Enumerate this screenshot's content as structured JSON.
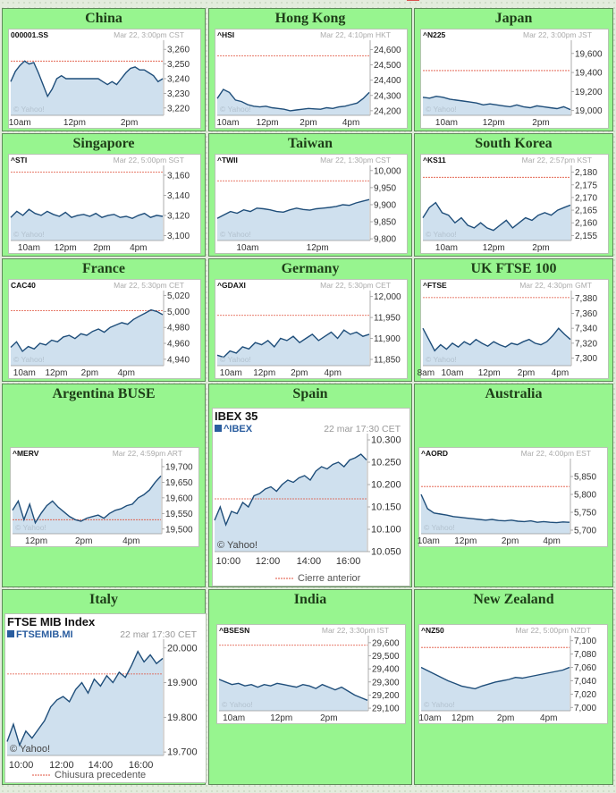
{
  "page": {
    "background": "#e3ecdd",
    "cell_color": "#97f58f"
  },
  "cells": [
    {
      "id": "china",
      "title": "China",
      "sym": "000001.SS",
      "date": "Mar 22, 3:00pm CST"
    },
    {
      "id": "hongkong",
      "title": "Hong Kong",
      "sym": "^HSI",
      "date": "Mar 22, 4:10pm HKT"
    },
    {
      "id": "japan",
      "title": "Japan",
      "sym": "^N225",
      "date": "Mar 22, 3:00pm JST"
    },
    {
      "id": "singapore",
      "title": "Singapore",
      "sym": "^STI",
      "date": "Mar 22, 5:00pm SGT"
    },
    {
      "id": "taiwan",
      "title": "Taiwan",
      "sym": "^TWII",
      "date": "Mar 22, 1:30pm CST"
    },
    {
      "id": "southkorea",
      "title": "South Korea",
      "sym": "^KS11",
      "date": "Mar 22, 2:57pm KST"
    },
    {
      "id": "france",
      "title": "France",
      "sym": "CAC40",
      "date": "Mar 22, 5:30pm CET"
    },
    {
      "id": "germany",
      "title": "Germany",
      "sym": "^GDAXI",
      "date": "Mar 22, 5:30pm CET"
    },
    {
      "id": "uk",
      "title": "UK FTSE 100",
      "sym": "^FTSE",
      "date": "Mar 22, 4:30pm GMT"
    },
    {
      "id": "argentina",
      "title": "Argentina BUSE",
      "sym": "^MERV",
      "date": "Mar 22, 4:59pm ART"
    },
    {
      "id": "spain",
      "title": "Spain",
      "sym": "^IBEX",
      "index_name": "IBEX 35",
      "date": "22 mar 17:30 CET",
      "legend": "Cierre anterior"
    },
    {
      "id": "australia",
      "title": "Australia",
      "sym": "^AORD",
      "date": "Mar 22, 4:00pm EST"
    },
    {
      "id": "italy",
      "title": "Italy",
      "sym": "FTSEMIB.MI",
      "index_name": "FTSE MIB Index",
      "date": "22 mar 17:30 CET",
      "legend": "Chiusura precedente"
    },
    {
      "id": "india",
      "title": "India",
      "sym": "^BSESN",
      "date": "Mar 22, 3:30pm IST"
    },
    {
      "id": "newzealand",
      "title": "New Zealand",
      "sym": "^NZ50",
      "date": "Mar 22, 5:00pm NZDT"
    }
  ],
  "watermark": "© Yahoo!",
  "chart_data": [
    {
      "id": "china",
      "type": "area",
      "title": "000001.SS",
      "ylim": [
        3215,
        3265
      ],
      "prev_close": 3252,
      "y_ticks": [
        "3,260",
        "3,250",
        "3,240",
        "3,230",
        "3,220"
      ],
      "y_tick_values": [
        3260,
        3250,
        3240,
        3230,
        3220
      ],
      "x_ticks": [
        "10am",
        "12pm",
        "2pm"
      ],
      "x_tick_pos": [
        0.06,
        0.42,
        0.78
      ],
      "series": [
        {
          "values": [
            3238,
            3245,
            3249,
            3252,
            3250,
            3251,
            3244,
            3236,
            3228,
            3233,
            3240,
            3242,
            3240,
            3240,
            3240,
            3240,
            3240,
            3240,
            3240,
            3240,
            3238,
            3236,
            3238,
            3236,
            3240,
            3244,
            3247,
            3248,
            3246,
            3246,
            3244,
            3242,
            3238,
            3240
          ]
        }
      ]
    },
    {
      "id": "hongkong",
      "type": "area",
      "title": "^HSI",
      "ylim": [
        24170,
        24650
      ],
      "prev_close": 24560,
      "y_ticks": [
        "24,600",
        "24,500",
        "24,400",
        "24,300",
        "24,200"
      ],
      "y_tick_values": [
        24600,
        24500,
        24400,
        24300,
        24200
      ],
      "x_ticks": [
        "10am",
        "12pm",
        "2pm",
        "4pm"
      ],
      "x_tick_pos": [
        0.07,
        0.33,
        0.6,
        0.88
      ],
      "series": [
        {
          "values": [
            24280,
            24340,
            24320,
            24270,
            24260,
            24240,
            24230,
            24225,
            24230,
            24220,
            24215,
            24210,
            24200,
            24205,
            24210,
            24215,
            24212,
            24210,
            24220,
            24215,
            24225,
            24230,
            24240,
            24250,
            24280,
            24320
          ]
        }
      ]
    },
    {
      "id": "japan",
      "type": "area",
      "title": "^N225",
      "ylim": [
        18950,
        19720
      ],
      "prev_close": 19420,
      "y_ticks": [
        "19,600",
        "19,400",
        "19,200",
        "19,000"
      ],
      "y_tick_values": [
        19600,
        19400,
        19200,
        19000
      ],
      "x_ticks": [
        "10am",
        "12pm",
        "2pm"
      ],
      "x_tick_pos": [
        0.16,
        0.48,
        0.8
      ],
      "series": [
        {
          "values": [
            19140,
            19130,
            19150,
            19140,
            19120,
            19110,
            19100,
            19090,
            19080,
            19060,
            19070,
            19060,
            19050,
            19040,
            19060,
            19040,
            19030,
            19050,
            19040,
            19030,
            19020,
            19040,
            19010
          ]
        }
      ]
    },
    {
      "id": "singapore",
      "type": "area",
      "title": "^STI",
      "ylim": [
        3095,
        3168
      ],
      "prev_close": 3163,
      "y_ticks": [
        "3,160",
        "3,140",
        "3,120",
        "3,100"
      ],
      "y_tick_values": [
        3160,
        3140,
        3120,
        3100
      ],
      "x_ticks": [
        "10am",
        "12pm",
        "2pm",
        "4pm"
      ],
      "x_tick_pos": [
        0.12,
        0.36,
        0.6,
        0.84
      ],
      "series": [
        {
          "values": [
            3118,
            3124,
            3120,
            3126,
            3122,
            3120,
            3124,
            3121,
            3119,
            3123,
            3118,
            3120,
            3121,
            3119,
            3122,
            3118,
            3120,
            3121,
            3118,
            3119,
            3117,
            3120,
            3122,
            3118,
            3120,
            3119
          ]
        }
      ]
    },
    {
      "id": "taiwan",
      "type": "area",
      "title": "^TWII",
      "ylim": [
        9795,
        10010
      ],
      "prev_close": 9970,
      "y_ticks": [
        "10,000",
        "9,950",
        "9,900",
        "9,850",
        "9,800"
      ],
      "y_tick_values": [
        10000,
        9950,
        9900,
        9850,
        9800
      ],
      "x_ticks": [
        "10am",
        "12pm"
      ],
      "x_tick_pos": [
        0.2,
        0.66
      ],
      "series": [
        {
          "values": [
            9860,
            9870,
            9880,
            9875,
            9885,
            9880,
            9890,
            9888,
            9885,
            9880,
            9878,
            9885,
            9890,
            9886,
            9884,
            9888,
            9890,
            9892,
            9895,
            9900,
            9898,
            9905,
            9910,
            9915
          ]
        }
      ]
    },
    {
      "id": "southkorea",
      "type": "area",
      "title": "^KS11",
      "ylim": [
        2153,
        2182
      ],
      "prev_close": 2178,
      "y_ticks": [
        "2,180",
        "2,175",
        "2,170",
        "2,165",
        "2,160",
        "2,155"
      ],
      "y_tick_values": [
        2180,
        2175,
        2170,
        2165,
        2160,
        2155
      ],
      "x_ticks": [
        "10am",
        "12pm",
        "2pm"
      ],
      "x_tick_pos": [
        0.16,
        0.48,
        0.8
      ],
      "series": [
        {
          "values": [
            2162,
            2166,
            2168,
            2164,
            2163,
            2160,
            2162,
            2159,
            2158,
            2160,
            2158,
            2157,
            2159,
            2161,
            2158,
            2160,
            2162,
            2161,
            2163,
            2164,
            2163,
            2165,
            2166,
            2167
          ]
        }
      ]
    },
    {
      "id": "france",
      "type": "area",
      "title": "CAC40",
      "ylim": [
        4932,
        5024
      ],
      "prev_close": 5001,
      "y_ticks": [
        "5,020",
        "5,000",
        "4,980",
        "4,960",
        "4,940"
      ],
      "y_tick_values": [
        5020,
        5000,
        4980,
        4960,
        4940
      ],
      "x_ticks": [
        "10am",
        "12pm",
        "2pm",
        "4pm"
      ],
      "x_tick_pos": [
        0.09,
        0.3,
        0.52,
        0.76
      ],
      "series": [
        {
          "values": [
            4955,
            4962,
            4950,
            4956,
            4953,
            4960,
            4958,
            4964,
            4962,
            4968,
            4970,
            4966,
            4972,
            4970,
            4975,
            4978,
            4974,
            4980,
            4983,
            4986,
            4984,
            4990,
            4994,
            4998,
            5002,
            5000,
            4996
          ]
        }
      ]
    },
    {
      "id": "germany",
      "type": "area",
      "title": "^GDAXI",
      "ylim": [
        11835,
        12010
      ],
      "prev_close": 11955,
      "y_ticks": [
        "12,000",
        "11,950",
        "11,900",
        "11,850"
      ],
      "y_tick_values": [
        12000,
        11950,
        11900,
        11850
      ],
      "x_ticks": [
        "10am",
        "12pm",
        "2pm",
        "4pm"
      ],
      "x_tick_pos": [
        0.09,
        0.31,
        0.54,
        0.76
      ],
      "series": [
        {
          "values": [
            11860,
            11855,
            11870,
            11865,
            11880,
            11875,
            11890,
            11885,
            11895,
            11880,
            11900,
            11895,
            11905,
            11890,
            11900,
            11910,
            11895,
            11905,
            11915,
            11900,
            11920,
            11910,
            11915,
            11905,
            11910
          ]
        }
      ]
    },
    {
      "id": "uk",
      "type": "area",
      "title": "^FTSE",
      "ylim": [
        7290,
        7388
      ],
      "prev_close": 7381,
      "y_ticks": [
        "7,380",
        "7,360",
        "7,340",
        "7,320",
        "7,300"
      ],
      "y_tick_values": [
        7380,
        7360,
        7340,
        7320,
        7300
      ],
      "x_ticks": [
        "8am",
        "10am",
        "12pm",
        "2pm",
        "4pm"
      ],
      "x_tick_pos": [
        0.02,
        0.2,
        0.45,
        0.7,
        0.93
      ],
      "series": [
        {
          "values": [
            7340,
            7325,
            7310,
            7318,
            7312,
            7320,
            7315,
            7322,
            7318,
            7325,
            7320,
            7316,
            7322,
            7318,
            7315,
            7320,
            7318,
            7322,
            7325,
            7320,
            7318,
            7322,
            7330,
            7340,
            7332,
            7325
          ]
        }
      ]
    },
    {
      "id": "argentina",
      "type": "area",
      "title": "^MERV",
      "ylim": [
        19485,
        19720
      ],
      "prev_close": 19530,
      "y_ticks": [
        "19,700",
        "19,650",
        "19,600",
        "19,550",
        "19,500"
      ],
      "y_tick_values": [
        19700,
        19650,
        19600,
        19550,
        19500
      ],
      "x_ticks": [
        "12pm",
        "2pm",
        "4pm"
      ],
      "x_tick_pos": [
        0.16,
        0.48,
        0.8
      ],
      "series": [
        {
          "values": [
            19560,
            19590,
            19530,
            19580,
            19520,
            19550,
            19575,
            19590,
            19570,
            19555,
            19540,
            19530,
            19525,
            19535,
            19540,
            19545,
            19535,
            19550,
            19560,
            19565,
            19575,
            19580,
            19600,
            19610,
            19625,
            19650,
            19670
          ]
        }
      ]
    },
    {
      "id": "spain",
      "type": "area",
      "title": "IBEX 35",
      "ylim": [
        10050,
        10310
      ],
      "prev_close": 10168,
      "y_ticks": [
        "10.300",
        "10.250",
        "10.200",
        "10.150",
        "10.100",
        "10.050"
      ],
      "y_tick_values": [
        10300,
        10250,
        10200,
        10150,
        10100,
        10050
      ],
      "x_ticks": [
        "10:00",
        "12:00",
        "14:00",
        "16:00"
      ],
      "x_tick_pos": [
        0.09,
        0.35,
        0.62,
        0.88
      ],
      "series": [
        {
          "values": [
            10120,
            10150,
            10110,
            10140,
            10135,
            10160,
            10150,
            10175,
            10180,
            10190,
            10195,
            10185,
            10200,
            10210,
            10205,
            10215,
            10220,
            10210,
            10230,
            10240,
            10235,
            10245,
            10250,
            10240,
            10255,
            10260,
            10268,
            10255
          ]
        }
      ]
    },
    {
      "id": "australia",
      "type": "area",
      "title": "^AORD",
      "ylim": [
        5690,
        5895
      ],
      "prev_close": 5822,
      "y_ticks": [
        "5,850",
        "5,800",
        "5,750",
        "5,700"
      ],
      "y_tick_values": [
        5850,
        5800,
        5750,
        5700
      ],
      "x_ticks": [
        "10am",
        "12pm",
        "2pm",
        "4pm"
      ],
      "x_tick_pos": [
        0.05,
        0.3,
        0.6,
        0.88
      ],
      "series": [
        {
          "values": [
            5800,
            5760,
            5748,
            5745,
            5742,
            5738,
            5736,
            5734,
            5732,
            5730,
            5728,
            5730,
            5727,
            5726,
            5728,
            5725,
            5724,
            5726,
            5722,
            5724,
            5722,
            5721,
            5723,
            5722
          ]
        }
      ]
    },
    {
      "id": "italy",
      "type": "area",
      "title": "FTSE MIB Index",
      "ylim": [
        19690,
        20020
      ],
      "prev_close": 19925,
      "y_ticks": [
        "20.000",
        "19.900",
        "19.800",
        "19.700"
      ],
      "y_tick_values": [
        20000,
        19900,
        19800,
        19700
      ],
      "x_ticks": [
        "10:00",
        "12:00",
        "14:00",
        "16:00"
      ],
      "x_tick_pos": [
        0.09,
        0.35,
        0.6,
        0.86
      ],
      "series": [
        {
          "values": [
            19730,
            19780,
            19720,
            19760,
            19740,
            19765,
            19790,
            19830,
            19850,
            19860,
            19845,
            19880,
            19900,
            19870,
            19910,
            19890,
            19920,
            19900,
            19930,
            19915,
            19950,
            19990,
            19960,
            19980,
            19955,
            19970
          ]
        }
      ]
    },
    {
      "id": "india",
      "type": "area",
      "title": "^BSESN",
      "ylim": [
        29080,
        29640
      ],
      "prev_close": 29580,
      "y_ticks": [
        "29,600",
        "29,500",
        "29,400",
        "29,300",
        "29,200",
        "29,100"
      ],
      "y_tick_values": [
        29600,
        29500,
        29400,
        29300,
        29200,
        29100
      ],
      "x_ticks": [
        "10am",
        "12pm",
        "2pm"
      ],
      "x_tick_pos": [
        0.1,
        0.42,
        0.74
      ],
      "series": [
        {
          "values": [
            29320,
            29300,
            29280,
            29290,
            29270,
            29280,
            29260,
            29280,
            29270,
            29290,
            29280,
            29270,
            29260,
            29280,
            29270,
            29250,
            29280,
            29260,
            29240,
            29260,
            29230,
            29200,
            29180,
            29160
          ]
        }
      ]
    },
    {
      "id": "newzealand",
      "type": "area",
      "title": "^NZ50",
      "ylim": [
        6995,
        7105
      ],
      "prev_close": 7090,
      "y_ticks": [
        "7,100",
        "7,080",
        "7,060",
        "7,040",
        "7,020",
        "7,000"
      ],
      "y_tick_values": [
        7100,
        7080,
        7060,
        7040,
        7020,
        7000
      ],
      "x_ticks": [
        "10am",
        "12pm",
        "2pm",
        "4pm"
      ],
      "x_tick_pos": [
        0.06,
        0.28,
        0.57,
        0.86
      ],
      "series": [
        {
          "values": [
            7060,
            7055,
            7050,
            7045,
            7040,
            7036,
            7032,
            7030,
            7028,
            7032,
            7035,
            7038,
            7040,
            7042,
            7045,
            7044,
            7046,
            7048,
            7050,
            7052,
            7054,
            7056,
            7060
          ]
        }
      ]
    }
  ]
}
